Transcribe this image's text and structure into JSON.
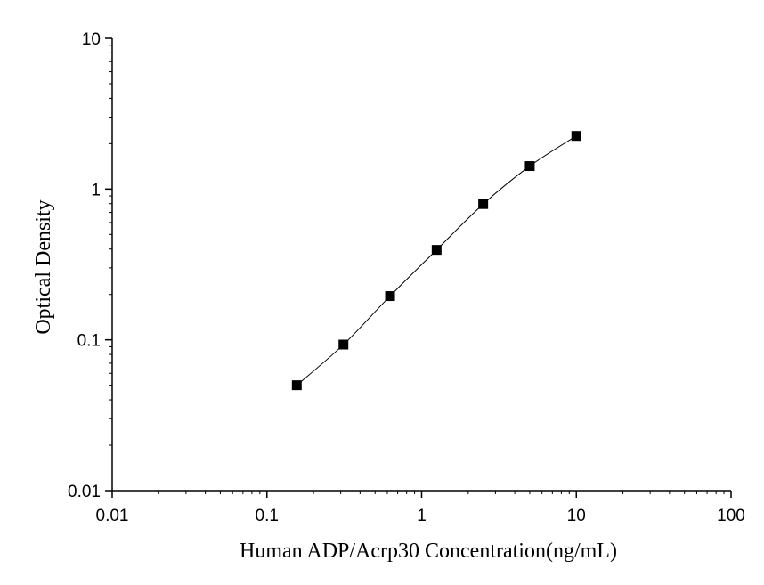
{
  "chart_data": {
    "type": "scatter",
    "xlabel": "Human ADP/Acrp30 Concentration(ng/mL)",
    "ylabel": "Optical Density",
    "x_scale": "log",
    "y_scale": "log",
    "xlim": [
      0.01,
      100
    ],
    "ylim": [
      0.01,
      10
    ],
    "x_ticks": [
      "0.01",
      "0.1",
      "1",
      "10",
      "100"
    ],
    "y_ticks": [
      "0.01",
      "0.1",
      "1",
      "10"
    ],
    "grid": false,
    "legend": "none",
    "fit_line": true,
    "series": [
      {
        "x": [
          0.156,
          0.3125,
          0.625,
          1.25,
          2.5,
          5,
          10
        ],
        "y": [
          0.05,
          0.093,
          0.195,
          0.395,
          0.795,
          1.42,
          2.25
        ]
      }
    ],
    "colors": {
      "marker": "#000000",
      "line": "#000000",
      "axis": "#000000"
    }
  }
}
